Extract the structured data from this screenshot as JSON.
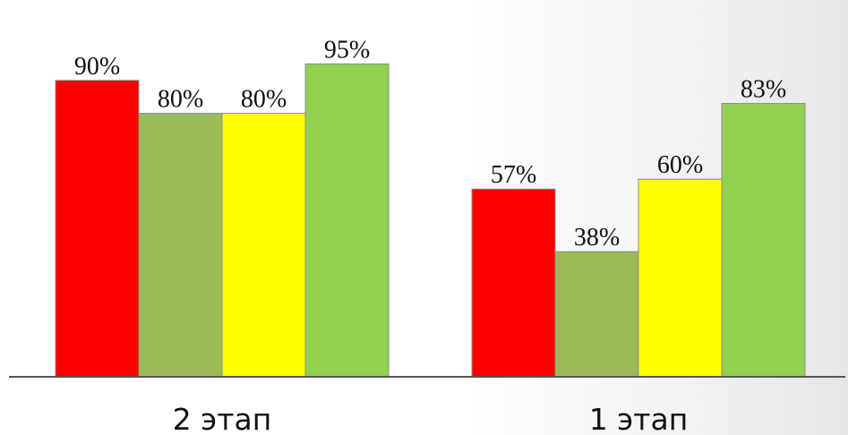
{
  "chart_data": {
    "type": "bar",
    "categories": [
      "2 этап",
      "1 этап"
    ],
    "series": [
      {
        "values": [
          90,
          57
        ],
        "color": "#ff0000"
      },
      {
        "values": [
          80,
          38
        ],
        "color": "#9bbb59"
      },
      {
        "values": [
          80,
          60
        ],
        "color": "#ffff00"
      },
      {
        "values": [
          95,
          83
        ],
        "color": "#92d050"
      }
    ],
    "value_labels": [
      [
        "90%",
        "57%"
      ],
      [
        "80%",
        "38%"
      ],
      [
        "80%",
        "60%"
      ],
      [
        "95%",
        "83%"
      ]
    ],
    "ylim": [
      0,
      100
    ],
    "grid": false,
    "legend": "none",
    "title": "",
    "xlabel": "",
    "ylabel": ""
  }
}
